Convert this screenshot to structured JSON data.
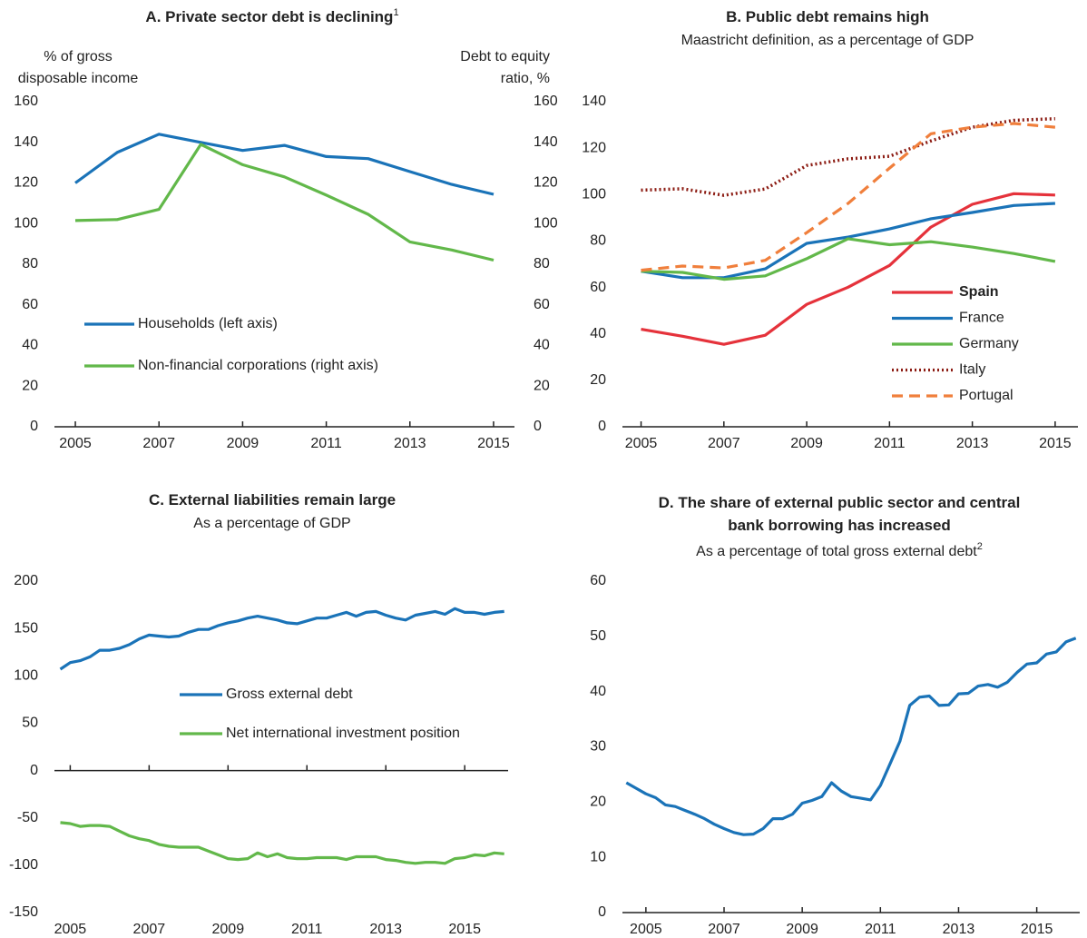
{
  "chart_data": [
    {
      "type": "line",
      "title": "A. Private sector debt is declining",
      "title_footnote": "1",
      "ylabel": [
        "% of gross",
        "disposable income"
      ],
      "y2label": [
        "Debt to equity",
        "ratio, %"
      ],
      "x": [
        2005,
        2006,
        2007,
        2008,
        2009,
        2010,
        2011,
        2012,
        2013,
        2014,
        2015
      ],
      "xlim": [
        2004.5,
        2015.5
      ],
      "xticks": [
        2005,
        2007,
        2009,
        2011,
        2013,
        2015
      ],
      "ylim": [
        0,
        160
      ],
      "yticks": [
        0,
        20,
        40,
        60,
        80,
        100,
        120,
        140,
        160
      ],
      "y2lim": [
        0,
        160
      ],
      "y2ticks": [
        0,
        20,
        40,
        60,
        80,
        100,
        120,
        140,
        160
      ],
      "grid": false,
      "series": [
        {
          "name": "Households (left axis)",
          "color": "#1a73b8",
          "values": [
            120,
            135,
            144,
            140,
            136,
            138.5,
            133,
            132,
            125.6,
            119.3,
            114.4
          ]
        },
        {
          "name": "Non-financial corporations (right axis)",
          "color": "#62b84a",
          "axis": "y2",
          "values": [
            101.5,
            102,
            107,
            139,
            129,
            123,
            114,
            104.6,
            91,
            87,
            82
          ]
        }
      ]
    },
    {
      "type": "line",
      "title": "B. Public debt remains high",
      "subtitle": "Maastricht definition, as a percentage of GDP",
      "x": [
        2005,
        2006,
        2007,
        2008,
        2009,
        2010,
        2011,
        2012,
        2013,
        2014,
        2015
      ],
      "xlim": [
        2004.55,
        2015.55
      ],
      "xticks": [
        2005,
        2007,
        2009,
        2011,
        2013,
        2015
      ],
      "ylim": [
        0,
        140
      ],
      "yticks": [
        0,
        20,
        40,
        60,
        80,
        100,
        120,
        140
      ],
      "grid": false,
      "series": [
        {
          "name": "Spain",
          "color": "#e5323b",
          "bold": true,
          "values": [
            42,
            39,
            35.5,
            39.4,
            52.7,
            60.1,
            69.5,
            86,
            95.8,
            100.4,
            99.8
          ]
        },
        {
          "name": "France",
          "color": "#1a73b8",
          "values": [
            67,
            64.2,
            64.2,
            68,
            79,
            81.7,
            85.2,
            89.6,
            92.3,
            95.3,
            96.2
          ]
        },
        {
          "name": "Germany",
          "color": "#62b84a",
          "values": [
            67,
            66.5,
            63.5,
            65,
            72.4,
            81,
            78.4,
            79.7,
            77.4,
            74.6,
            71.2
          ]
        },
        {
          "name": "Italy",
          "color": "#8c1c13",
          "dash": "dotted",
          "values": [
            101.9,
            102.5,
            99.7,
            102.4,
            112.5,
            115.4,
            116.5,
            123.1,
            129,
            132,
            132.7
          ]
        },
        {
          "name": "Portugal",
          "color": "#f07f3c",
          "dash": "dashed",
          "values": [
            67.4,
            69.2,
            68.4,
            71.7,
            83.6,
            96.2,
            111.4,
            126.2,
            129,
            130.6,
            129
          ]
        }
      ]
    },
    {
      "type": "line",
      "title": "C. External liabilities remain large",
      "subtitle": "As a percentage of GDP",
      "x": [
        2004.75,
        2005,
        2005.25,
        2005.5,
        2005.75,
        2006,
        2006.25,
        2006.5,
        2006.75,
        2007,
        2007.25,
        2007.5,
        2007.75,
        2008,
        2008.25,
        2008.5,
        2008.75,
        2009,
        2009.25,
        2009.5,
        2009.75,
        2010,
        2010.25,
        2010.5,
        2010.75,
        2011,
        2011.25,
        2011.5,
        2011.75,
        2012,
        2012.25,
        2012.5,
        2012.75,
        2013,
        2013.25,
        2013.5,
        2013.75,
        2014,
        2014.25,
        2014.5,
        2014.75,
        2015,
        2015.25,
        2015.5,
        2015.75,
        2016
      ],
      "xlim": [
        2004.6,
        2016.1
      ],
      "xticks": [
        2005,
        2007,
        2009,
        2011,
        2013,
        2015
      ],
      "ylim": [
        -150,
        200
      ],
      "yticks": [
        -150,
        -100,
        -50,
        0,
        50,
        100,
        150,
        200
      ],
      "grid": false,
      "series": [
        {
          "name": "Gross external debt",
          "color": "#1a73b8",
          "values": [
            107,
            114,
            116,
            120,
            127,
            127,
            129,
            133,
            139,
            143,
            142,
            141,
            142,
            146,
            149,
            149,
            153,
            156,
            158,
            161,
            163,
            161,
            159,
            156,
            155,
            158,
            161,
            161,
            164,
            167,
            163,
            167,
            168,
            164,
            161,
            159,
            164,
            166,
            168,
            165,
            171,
            167,
            167,
            165,
            167,
            168
          ]
        },
        {
          "name": "Net international investment position",
          "color": "#62b84a",
          "values": [
            -55,
            -56,
            -59,
            -58,
            -58,
            -59,
            -64,
            -69,
            -72,
            -74,
            -78,
            -80,
            -81,
            -81,
            -81,
            -85,
            -89,
            -93,
            -94,
            -93,
            -87,
            -91,
            -88,
            -92,
            -93,
            -93,
            -92,
            -92,
            -92,
            -94,
            -91,
            -91,
            -91,
            -94,
            -95,
            -97,
            -98,
            -97,
            -97,
            -98,
            -93,
            -92,
            -89,
            -90,
            -87,
            -88
          ]
        }
      ]
    },
    {
      "type": "line",
      "title": [
        "D. The share of external public sector and central",
        "bank borrowing has increased"
      ],
      "subtitle": "As a percentage of total gross external debt",
      "subtitle_footnote": "2",
      "x": [
        2004.5,
        2004.75,
        2005,
        2005.25,
        2005.5,
        2005.75,
        2006,
        2006.25,
        2006.5,
        2006.75,
        2007,
        2007.25,
        2007.5,
        2007.75,
        2008,
        2008.25,
        2008.5,
        2008.75,
        2009,
        2009.25,
        2009.5,
        2009.75,
        2010,
        2010.25,
        2010.5,
        2010.75,
        2011,
        2011.25,
        2011.5,
        2011.75,
        2012,
        2012.25,
        2012.5,
        2012.75,
        2013,
        2013.25,
        2013.5,
        2013.75,
        2014,
        2014.25,
        2014.5,
        2014.75,
        2015,
        2015.25,
        2015.5,
        2015.75,
        2016
      ],
      "xlim": [
        2004.4,
        2016.1
      ],
      "xticks": [
        2005,
        2007,
        2009,
        2011,
        2013,
        2015
      ],
      "ylim": [
        0,
        60
      ],
      "yticks": [
        0,
        10,
        20,
        30,
        40,
        50,
        60
      ],
      "grid": false,
      "series": [
        {
          "color": "#1a73b8",
          "values": [
            23.5,
            22.5,
            21.5,
            20.8,
            19.5,
            19.2,
            18.5,
            17.8,
            17,
            16,
            15.2,
            14.5,
            14.1,
            14.2,
            15.2,
            17,
            17,
            17.8,
            19.8,
            20.3,
            21,
            23.5,
            22,
            21,
            20.7,
            20.4,
            23,
            27,
            31,
            37.5,
            39,
            39.2,
            37.5,
            37.6,
            39.6,
            39.7,
            41,
            41.3,
            40.8,
            41.7,
            43.5,
            45,
            45.2,
            46.8,
            47.2,
            49,
            49.7
          ]
        }
      ]
    }
  ]
}
